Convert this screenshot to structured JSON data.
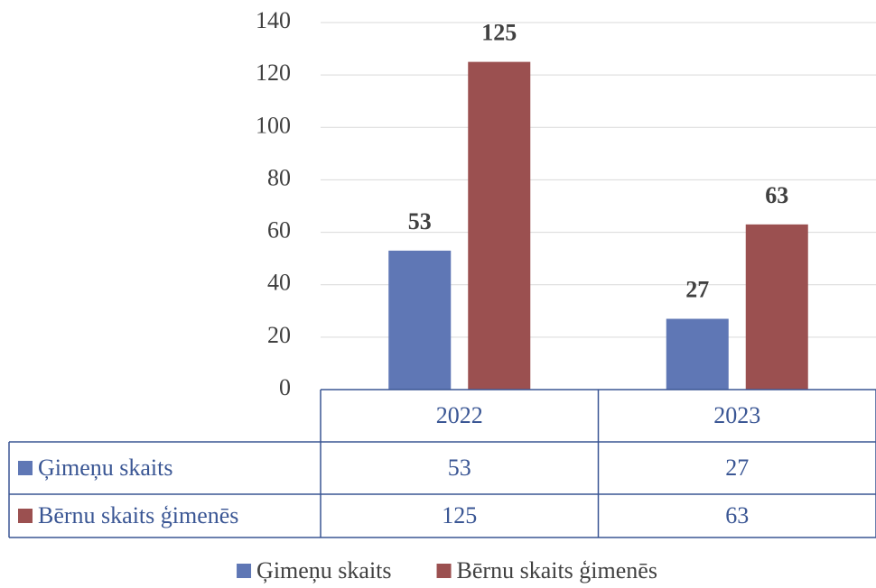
{
  "chart_data": {
    "type": "bar",
    "categories": [
      "2022",
      "2023"
    ],
    "series": [
      {
        "name": "Ģimeņu skaits",
        "color": "#5f77b5",
        "values": [
          53,
          27
        ]
      },
      {
        "name": "Bērnu skaits ģimenēs",
        "color": "#9b5050",
        "values": [
          125,
          63
        ]
      }
    ],
    "ylim": [
      0,
      140
    ],
    "yticks": [
      0,
      20,
      40,
      60,
      80,
      100,
      120,
      140
    ],
    "grid": true,
    "data_table": true,
    "legend": "bottom"
  }
}
